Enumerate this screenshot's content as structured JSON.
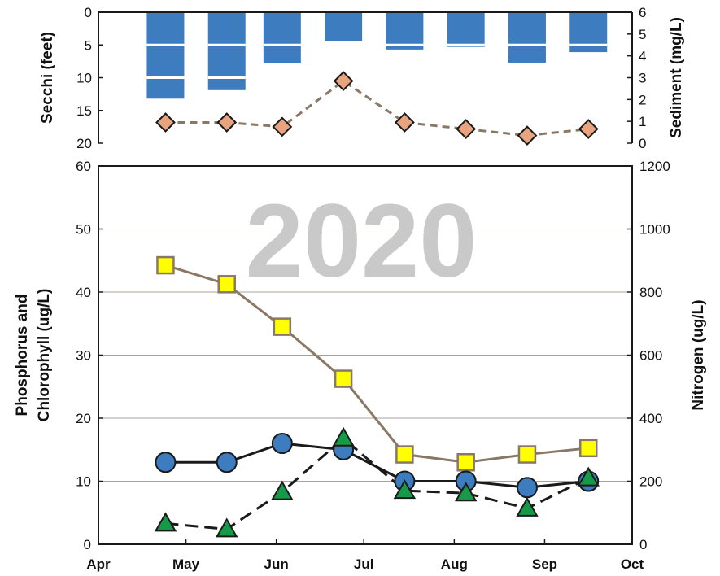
{
  "chart_data": [
    {
      "type": "bar+line",
      "ylabel_left": "Secchi (feet)",
      "ylabel_right": "Sediment (mg/L)",
      "ylim_left": [
        0,
        20
      ],
      "ylim_left_inverted": true,
      "yticks_left": [
        "0",
        "5",
        "10",
        "15",
        "20"
      ],
      "ylim_right": [
        0,
        6
      ],
      "yticks_right": [
        "0",
        "1",
        "2",
        "3",
        "4",
        "5",
        "6"
      ],
      "secchi_depth_series": {
        "bar_color": "#3e7cc0",
        "dates": [
          "Apr 24",
          "May 15",
          "Jun 3",
          "Jun 24",
          "Jul 15",
          "Aug 5",
          "Aug 26",
          "Sep 16"
        ],
        "depths_feet": [
          13.2,
          11.9,
          7.8,
          4.4,
          5.7,
          5.3,
          7.7,
          6.1
        ],
        "segment_breaks_feet": [
          [
            5,
            10
          ],
          [
            5,
            10
          ],
          [
            5
          ],
          [],
          [
            5
          ],
          [
            5
          ],
          [
            5
          ],
          [
            5
          ]
        ]
      },
      "sediment_series": {
        "marker": "diamond",
        "color": "#e8a47e",
        "line_color": "#8a7866",
        "dashed": true,
        "dates": [
          "Apr 24",
          "May 15",
          "Jun 3",
          "Jun 24",
          "Jul 15",
          "Aug 5",
          "Aug 26",
          "Sep 16"
        ],
        "values": [
          0.95,
          0.95,
          0.75,
          2.85,
          0.95,
          0.65,
          0.35,
          0.65
        ]
      }
    },
    {
      "type": "line",
      "watermark": "2020",
      "x_ticks": [
        "Apr",
        "May",
        "Jun",
        "Jul",
        "Aug",
        "Sep",
        "Oct"
      ],
      "ylabel_left_lines": [
        "Phosphorus and",
        "Chlorophyll (ug/L)"
      ],
      "ylabel_right": "Nitrogen (ug/L)",
      "ylim_left": [
        0,
        60
      ],
      "yticks_left": [
        "0",
        "10",
        "20",
        "30",
        "40",
        "50",
        "60"
      ],
      "ylim_right": [
        0,
        1200
      ],
      "yticks_right": [
        "0",
        "200",
        "400",
        "600",
        "800",
        "1000",
        "1200"
      ],
      "grid": true,
      "series": [
        {
          "axis": "right",
          "marker": "square",
          "color": "#ffff00",
          "line_color": "#8a7866",
          "dashed": false,
          "dates": [
            "Apr 24",
            "May 15",
            "Jun 3",
            "Jun 24",
            "Jul 15",
            "Aug 5",
            "Aug 26",
            "Sep 16"
          ],
          "values": [
            885,
            825,
            690,
            525,
            285,
            260,
            285,
            305
          ]
        },
        {
          "axis": "left",
          "marker": "circle",
          "color": "#3e7cc0",
          "line_color": "#1a1a1a",
          "dashed": false,
          "dates": [
            "Apr 24",
            "May 15",
            "Jun 3",
            "Jun 24",
            "Jul 15",
            "Aug 5",
            "Aug 26",
            "Sep 16"
          ],
          "values": [
            13,
            13,
            16,
            15,
            10,
            10,
            9,
            10
          ]
        },
        {
          "axis": "left",
          "marker": "triangle",
          "color": "#159a48",
          "line_color": "#1a1a1a",
          "dashed": true,
          "dates": [
            "Apr 24",
            "May 15",
            "Jun 3",
            "Jun 24",
            "Jul 15",
            "Aug 5",
            "Aug 26",
            "Sep 16"
          ],
          "values": [
            3.3,
            2.4,
            8.3,
            16.8,
            8.5,
            8.1,
            5.7,
            10.5
          ]
        }
      ]
    }
  ]
}
